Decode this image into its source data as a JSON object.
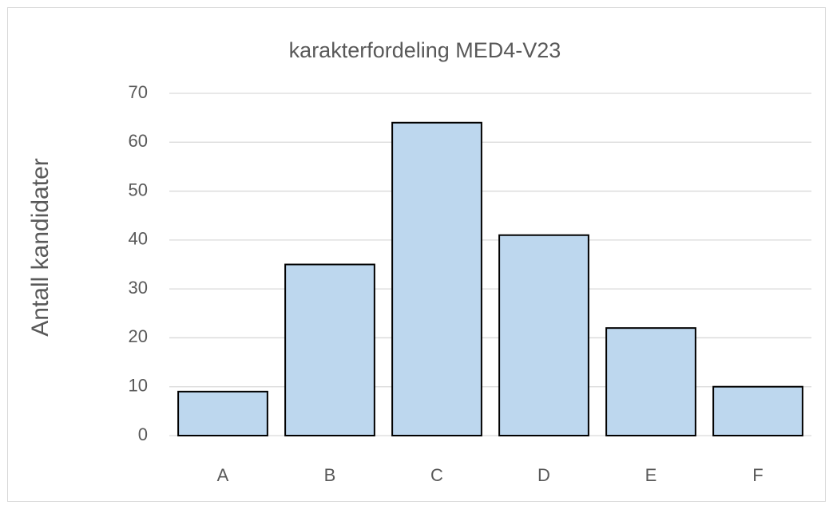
{
  "chart_data": {
    "type": "bar",
    "title": "karakterfordeling MED4-V23",
    "y_label": "Antall kandidater",
    "categories": [
      "A",
      "B",
      "C",
      "D",
      "E",
      "F"
    ],
    "values": [
      9,
      35,
      64,
      41,
      22,
      10
    ],
    "color": "#bdd7ee",
    "ylim": [
      0,
      70
    ],
    "yticks": [
      0,
      10,
      20,
      30,
      40,
      50,
      60,
      70
    ],
    "grid": true
  }
}
